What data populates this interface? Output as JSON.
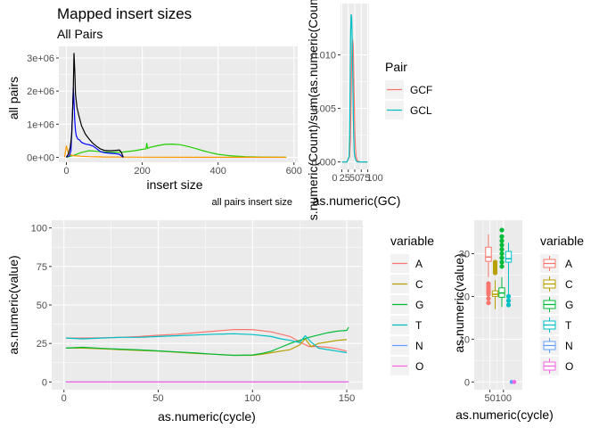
{
  "chart_data": [
    {
      "type": "line",
      "title": "Mapped insert sizes",
      "subtitle": "All Pairs",
      "xlabel": "insert size",
      "ylabel": "all pairs",
      "caption": "all pairs insert size",
      "xlim": [
        -20,
        610
      ],
      "ylim": [
        -150000,
        3350000
      ],
      "xticks": [
        0,
        200,
        400,
        600
      ],
      "yticks": [
        0,
        1000000,
        2000000,
        3000000
      ],
      "yticklabels": [
        "0e+00",
        "1e+06",
        "2e+06",
        "3e+06"
      ],
      "colors": {
        "black": "#000000",
        "blue": "#0000ff",
        "green": "#22cc00",
        "orange": "#ff9900"
      },
      "series": [
        {
          "color": "black",
          "x": [
            0,
            5,
            10,
            14,
            18,
            20,
            22,
            24,
            28,
            32,
            40,
            50,
            60,
            70,
            80,
            90,
            100,
            110,
            120,
            130,
            140,
            145,
            150
          ],
          "y": [
            0,
            100000,
            300000,
            700000,
            2000000,
            3150000,
            2600000,
            1900000,
            1500000,
            1300000,
            950000,
            700000,
            550000,
            420000,
            330000,
            250000,
            210000,
            200000,
            200000,
            210000,
            220000,
            150000,
            0
          ]
        },
        {
          "color": "blue",
          "x": [
            0,
            8,
            12,
            16,
            18,
            20,
            22,
            24,
            26,
            30,
            35,
            40,
            50,
            60,
            70,
            80,
            90,
            100,
            110,
            120,
            130,
            140,
            150
          ],
          "y": [
            0,
            50000,
            200000,
            1300000,
            2100000,
            1700000,
            1100000,
            800000,
            650000,
            550000,
            520000,
            450000,
            400000,
            380000,
            340000,
            260000,
            170000,
            140000,
            130000,
            120000,
            110000,
            90000,
            0
          ]
        },
        {
          "color": "green",
          "x": [
            0,
            20,
            40,
            60,
            80,
            100,
            120,
            150,
            180,
            200,
            210,
            212,
            214,
            220,
            240,
            260,
            280,
            300,
            320,
            340,
            360,
            380,
            400,
            430,
            470,
            520,
            580
          ],
          "y": [
            0,
            60000,
            150000,
            200000,
            180000,
            160000,
            150000,
            160000,
            200000,
            240000,
            260000,
            430000,
            270000,
            300000,
            350000,
            390000,
            400000,
            380000,
            330000,
            270000,
            200000,
            140000,
            90000,
            50000,
            20000,
            5000,
            0
          ]
        },
        {
          "color": "orange",
          "x": [
            -5,
            0,
            3,
            6,
            10,
            15,
            20,
            30,
            40,
            60,
            80,
            100,
            150,
            200,
            300,
            400,
            500,
            580
          ],
          "y": [
            0,
            350000,
            200000,
            100000,
            80000,
            60000,
            50000,
            40000,
            30000,
            20000,
            15000,
            10000,
            5000,
            3000,
            2000,
            1000,
            500,
            0
          ]
        }
      ]
    },
    {
      "type": "line",
      "xlabel": "as.numeric(GC)",
      "ylabel": "as.numeric(Count)/sum(as.numeric(Count))",
      "ylim": [
        -0.0007,
        0.0148
      ],
      "yticks": [
        0,
        0.005,
        0.01
      ],
      "yticklabels": [
        "0.000",
        "0.005",
        "0.010"
      ],
      "xlim": [
        -5,
        105
      ],
      "xticklabels": [
        "0",
        "25",
        "50",
        "75",
        "100"
      ],
      "legend_title": "Pair",
      "legend_position": "right",
      "series": [
        {
          "name": "GCF",
          "color": "#f8766d",
          "x": [
            0,
            10,
            20,
            30,
            33,
            36,
            38,
            40,
            42,
            44,
            46,
            48,
            50,
            52,
            55,
            60,
            70,
            80,
            100
          ],
          "y": [
            0,
            0,
            0,
            0.0005,
            0.002,
            0.006,
            0.0095,
            0.0112,
            0.0113,
            0.0108,
            0.009,
            0.006,
            0.003,
            0.0015,
            0.0005,
            0.0001,
            0,
            0,
            0
          ]
        },
        {
          "name": "GCL",
          "color": "#00bfc4",
          "x": [
            0,
            10,
            20,
            28,
            30,
            32,
            34,
            36,
            38,
            40,
            42,
            44,
            46,
            48,
            50,
            55,
            60,
            80,
            100
          ],
          "y": [
            0,
            0,
            0,
            0.0005,
            0.0025,
            0.007,
            0.0118,
            0.0138,
            0.0135,
            0.0115,
            0.0085,
            0.005,
            0.0025,
            0.001,
            0.0005,
            0.0001,
            0,
            0,
            0
          ]
        }
      ]
    },
    {
      "type": "line",
      "xlabel": "as.numeric(cycle)",
      "ylabel": "as.numeric(value)",
      "xlim": [
        -6.5,
        158.5
      ],
      "ylim": [
        -5,
        105
      ],
      "xticks": [
        0,
        50,
        100,
        150
      ],
      "yticks": [
        0,
        25,
        50,
        75,
        100
      ],
      "legend_title": "variable",
      "legend_position": "right",
      "series": [
        {
          "name": "A",
          "color": "#f8766d",
          "x": [
            1,
            10,
            20,
            30,
            40,
            50,
            60,
            70,
            80,
            90,
            100,
            110,
            120,
            125,
            130,
            135,
            140,
            145,
            150
          ],
          "y": [
            28.5,
            28.5,
            28.7,
            29,
            29.5,
            30.3,
            31,
            32,
            33,
            34,
            34,
            32.5,
            29.5,
            26,
            23,
            23,
            22.5,
            21.5,
            20
          ]
        },
        {
          "name": "C",
          "color": "#b79f00",
          "x": [
            1,
            10,
            20,
            30,
            40,
            50,
            60,
            70,
            80,
            90,
            100,
            105,
            110,
            115,
            120,
            125,
            128,
            131,
            135,
            140,
            145,
            150
          ],
          "y": [
            22,
            22,
            21.5,
            21,
            20.5,
            20,
            19.3,
            18.5,
            18,
            17.3,
            17.3,
            18,
            19,
            20,
            21,
            24,
            28,
            23,
            25,
            26,
            27,
            27.5
          ]
        },
        {
          "name": "G",
          "color": "#00ba38",
          "x": [
            1,
            10,
            20,
            30,
            40,
            50,
            60,
            70,
            80,
            90,
            100,
            105,
            110,
            115,
            120,
            125,
            130,
            135,
            140,
            145,
            150,
            151
          ],
          "y": [
            22,
            22.5,
            21.8,
            21.3,
            20.8,
            20.2,
            19.5,
            18.8,
            18,
            17.3,
            17.5,
            18.5,
            20,
            22.5,
            25,
            27,
            29,
            30.5,
            32,
            33,
            33.5,
            35.5
          ]
        },
        {
          "name": "T",
          "color": "#00bfc4",
          "x": [
            1,
            10,
            20,
            30,
            40,
            50,
            60,
            70,
            80,
            90,
            100,
            110,
            115,
            120,
            125,
            128,
            131,
            135,
            140,
            145,
            150
          ],
          "y": [
            28.5,
            28,
            28.5,
            29,
            29,
            29.5,
            30,
            30.5,
            31,
            31.3,
            30.8,
            29.5,
            28,
            27,
            25.5,
            30,
            26,
            22,
            21,
            20,
            19
          ]
        },
        {
          "name": "N",
          "color": "#619cff",
          "x": [
            1,
            151
          ],
          "y": [
            0,
            0
          ]
        },
        {
          "name": "O",
          "color": "#f564e3",
          "x": [
            1,
            151
          ],
          "y": [
            0,
            0
          ]
        }
      ]
    },
    {
      "type": "box",
      "xlabel": "as.numeric(cycle)",
      "ylabel": "as.numeric(value)",
      "xlim": [
        -8,
        170
      ],
      "ylim": [
        -1.8,
        37.8
      ],
      "xticks": [
        50,
        100
      ],
      "yticks": [
        0,
        10,
        20,
        30
      ],
      "legend_title": "variable",
      "legend_position": "right",
      "boxes": [
        {
          "name": "A",
          "color": "#f8766d",
          "q1": 28.2,
          "median": 29.2,
          "q3": 31.5,
          "whisker_low": 24.5,
          "whisker_high": 34.5,
          "outliers": [
            18.5,
            19.5,
            20.5,
            21,
            21.5,
            22,
            22.5,
            23
          ]
        },
        {
          "name": "C",
          "color": "#b79f00",
          "q1": 20,
          "median": 20.5,
          "q3": 21.3,
          "whisker_low": 17,
          "whisker_high": 23.8,
          "outliers": [
            25.5,
            26,
            26.5,
            27,
            27.5,
            28
          ]
        },
        {
          "name": "G",
          "color": "#00ba38",
          "q1": 19.8,
          "median": 20.8,
          "q3": 22,
          "whisker_low": 17.5,
          "whisker_high": 24.5,
          "outliers": [
            27,
            28,
            29,
            30,
            31,
            32,
            33,
            34,
            35.5
          ]
        },
        {
          "name": "T",
          "color": "#00bfc4",
          "q1": 28,
          "median": 28.8,
          "q3": 30.5,
          "whisker_low": 17.8,
          "whisker_high": 32.5,
          "outliers": [
            18,
            19,
            20
          ]
        },
        {
          "name": "N",
          "color": "#619cff",
          "value": 0
        },
        {
          "name": "O",
          "color": "#f564e3",
          "value": 0
        }
      ]
    }
  ]
}
